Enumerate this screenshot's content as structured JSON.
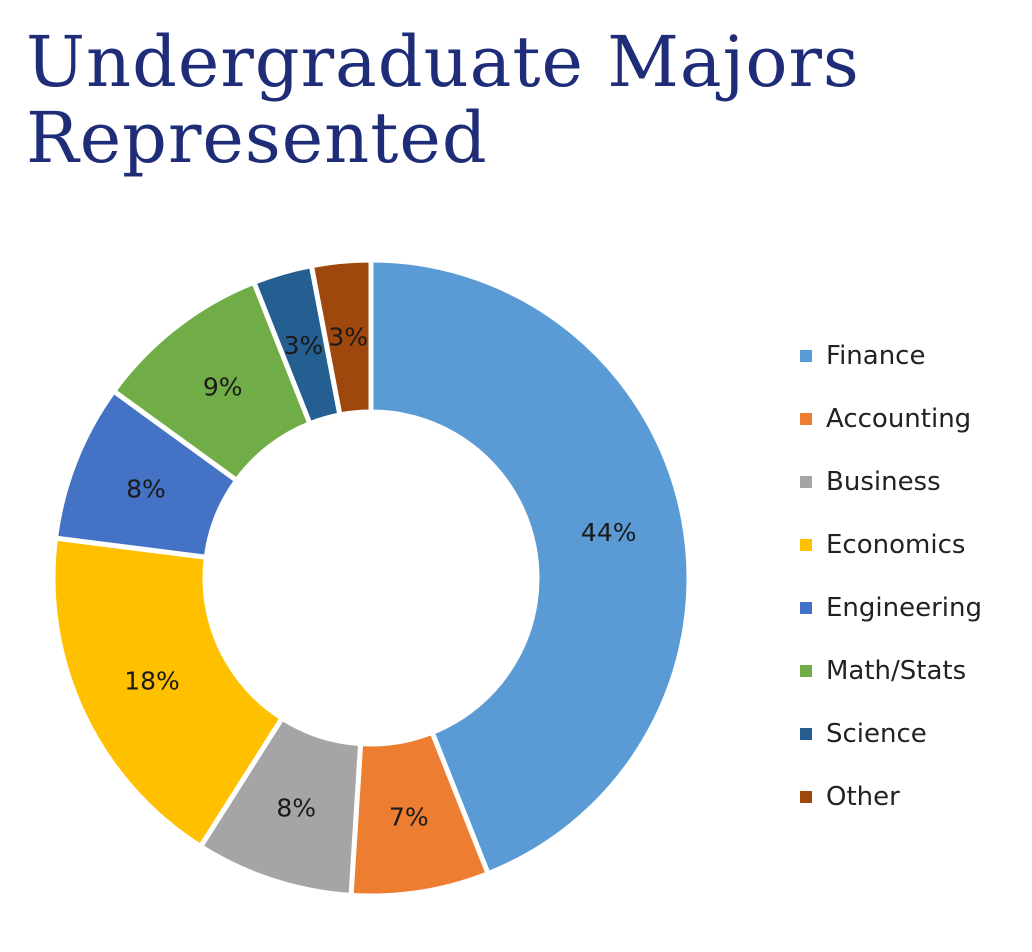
{
  "chart_data": {
    "type": "pie",
    "variant": "donut",
    "title": "Undergraduate Majors Represented",
    "title_lines": [
      "Undergraduate Majors",
      "Represented"
    ],
    "unit": "%",
    "legend_position": "right",
    "slices": [
      {
        "label": "Finance",
        "value": 44,
        "display": "44%",
        "color": "#5b9bd5"
      },
      {
        "label": "Accounting",
        "value": 7,
        "display": "7%",
        "color": "#ed7d31"
      },
      {
        "label": "Business",
        "value": 8,
        "display": "8%",
        "color": "#a5a5a5"
      },
      {
        "label": "Economics",
        "value": 18,
        "display": "18%",
        "color": "#ffc000"
      },
      {
        "label": "Engineering",
        "value": 8,
        "display": "8%",
        "color": "#4472c4"
      },
      {
        "label": "Math/Stats",
        "value": 9,
        "display": "9%",
        "color": "#70ad47"
      },
      {
        "label": "Science",
        "value": 3,
        "display": "3%",
        "color": "#255e91"
      },
      {
        "label": "Other",
        "value": 3,
        "display": "3%",
        "color": "#9e480e"
      }
    ]
  }
}
